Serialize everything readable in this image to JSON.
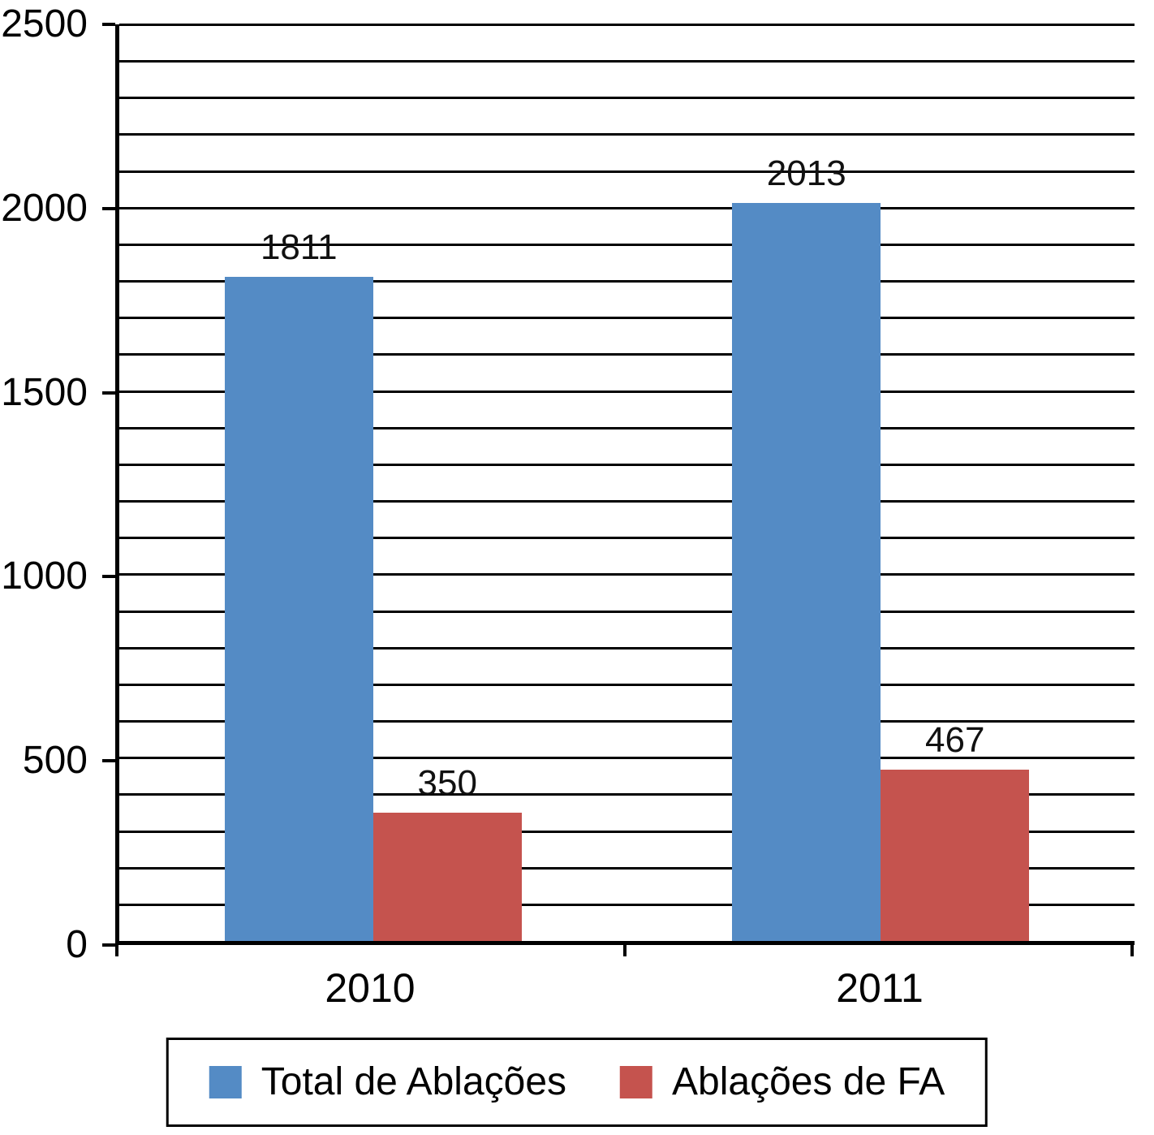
{
  "chart_data": {
    "type": "bar",
    "categories": [
      "2010",
      "2011"
    ],
    "series": [
      {
        "name": "Total de Ablações",
        "color": "#548bc5",
        "values": [
          1811,
          2013
        ]
      },
      {
        "name": "Ablações de FA",
        "color": "#c5534e",
        "values": [
          350,
          467
        ]
      }
    ],
    "title": "",
    "xlabel": "",
    "ylabel": "",
    "ylim": [
      0,
      2500
    ],
    "y_ticks": [
      0,
      500,
      1000,
      1500,
      2000,
      2500
    ],
    "grid_step": 100,
    "grid": true,
    "legend_position": "bottom",
    "value_labels": [
      "1811",
      "350",
      "2013",
      "467"
    ]
  }
}
